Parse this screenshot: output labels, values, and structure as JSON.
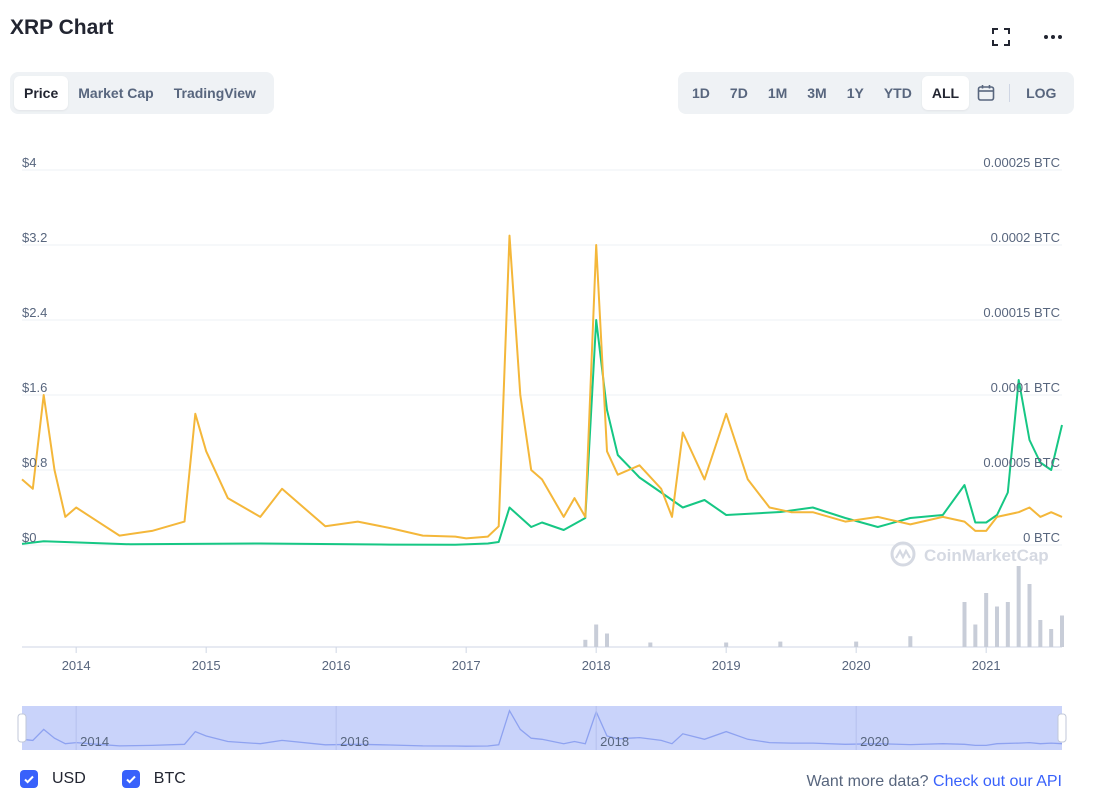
{
  "header": {
    "title": "XRP Chart"
  },
  "tabs_left": [
    {
      "label": "Price",
      "active": true
    },
    {
      "label": "Market Cap",
      "active": false
    },
    {
      "label": "TradingView",
      "active": false
    }
  ],
  "ranges": [
    {
      "label": "1D",
      "active": false
    },
    {
      "label": "7D",
      "active": false
    },
    {
      "label": "1M",
      "active": false
    },
    {
      "label": "3M",
      "active": false
    },
    {
      "label": "1Y",
      "active": false
    },
    {
      "label": "YTD",
      "active": false
    },
    {
      "label": "ALL",
      "active": true
    }
  ],
  "log_label": "LOG",
  "icons": {
    "fullscreen": "fullscreen-icon",
    "more": "more-icon",
    "calendar": "calendar-icon",
    "check": "check-icon"
  },
  "colors": {
    "usd": "#f4b73a",
    "btc": "#16c784",
    "accent": "#3861fb",
    "volume": "#c8cdd8",
    "navigator": "#c9d3fa"
  },
  "watermark": "CoinMarketCap",
  "legend": {
    "usd_label": "USD",
    "btc_label": "BTC"
  },
  "footer": {
    "text": "Want more data?",
    "link": "Check out our API"
  },
  "chart_data": {
    "type": "line",
    "x_range": [
      "2013-08",
      "2021-08"
    ],
    "x_ticks": [
      "2014",
      "2015",
      "2016",
      "2017",
      "2018",
      "2019",
      "2020",
      "2021"
    ],
    "left_axis": {
      "ticks": [
        "$4",
        "$3.2",
        "$2.4",
        "$1.6",
        "$0.8",
        "$0"
      ],
      "range": [
        0,
        4
      ]
    },
    "right_axis": {
      "ticks": [
        "0.00025 BTC",
        "0.0002 BTC",
        "0.00015 BTC",
        "0.0001 BTC",
        "0.00005 BTC",
        "0 BTC"
      ],
      "range": [
        0,
        0.00025
      ]
    },
    "navigator_ticks": [
      "2014",
      "2016",
      "2018",
      "2020"
    ],
    "grid": true,
    "series": [
      {
        "name": "USD",
        "axis": "left",
        "x": [
          "2013-08",
          "2013-09",
          "2013-10",
          "2013-11",
          "2013-12",
          "2014-01",
          "2014-03",
          "2014-05",
          "2014-08",
          "2014-11",
          "2014-12",
          "2015-01",
          "2015-03",
          "2015-06",
          "2015-08",
          "2015-12",
          "2016-03",
          "2016-06",
          "2016-09",
          "2016-12",
          "2017-01",
          "2017-03",
          "2017-04",
          "2017-05",
          "2017-06",
          "2017-07",
          "2017-08",
          "2017-10",
          "2017-11",
          "2017-12",
          "2018-01",
          "2018-02",
          "2018-03",
          "2018-05",
          "2018-07",
          "2018-08",
          "2018-09",
          "2018-11",
          "2019-01",
          "2019-03",
          "2019-05",
          "2019-07",
          "2019-09",
          "2019-12",
          "2020-03",
          "2020-06",
          "2020-09",
          "2020-11",
          "2020-12",
          "2021-01",
          "2021-02",
          "2021-04",
          "2021-05",
          "2021-06",
          "2021-07",
          "2021-08"
        ],
        "values": [
          0.7,
          0.6,
          1.6,
          0.8,
          0.3,
          0.4,
          0.25,
          0.1,
          0.15,
          0.25,
          1.4,
          1.0,
          0.5,
          0.3,
          0.6,
          0.2,
          0.25,
          0.18,
          0.1,
          0.09,
          0.07,
          0.09,
          0.2,
          3.3,
          1.6,
          0.8,
          0.7,
          0.3,
          0.5,
          0.3,
          3.2,
          1.0,
          0.75,
          0.85,
          0.6,
          0.3,
          1.2,
          0.7,
          1.4,
          0.7,
          0.4,
          0.35,
          0.35,
          0.25,
          0.3,
          0.22,
          0.3,
          0.25,
          0.15,
          0.15,
          0.3,
          0.35,
          0.4,
          0.3,
          0.35,
          0.3
        ]
      },
      {
        "name": "BTC",
        "axis": "right",
        "x": [
          "2013-08",
          "2013-10",
          "2014-06",
          "2015-06",
          "2016-06",
          "2016-12",
          "2017-03",
          "2017-04",
          "2017-05",
          "2017-07",
          "2017-08",
          "2017-10",
          "2017-12",
          "2018-01",
          "2018-02",
          "2018-03",
          "2018-05",
          "2018-07",
          "2018-09",
          "2018-11",
          "2019-01",
          "2019-06",
          "2019-09",
          "2019-12",
          "2020-03",
          "2020-06",
          "2020-09",
          "2020-11",
          "2020-12",
          "2021-01",
          "2021-02",
          "2021-03",
          "2021-04",
          "2021-05",
          "2021-06",
          "2021-07",
          "2021-08"
        ],
        "values": [
          7e-07,
          2.5e-06,
          5e-07,
          1e-06,
          3e-07,
          2e-07,
          1e-06,
          2e-06,
          2.5e-05,
          1.2e-05,
          1.5e-05,
          1e-05,
          1.8e-05,
          0.00015,
          9e-05,
          6e-05,
          4.5e-05,
          3.5e-05,
          2.5e-05,
          3e-05,
          2e-05,
          2.2e-05,
          2.5e-05,
          1.8e-05,
          1.2e-05,
          1.8e-05,
          2e-05,
          4e-05,
          1.5e-05,
          1.5e-05,
          2e-05,
          3.5e-05,
          0.00011,
          7e-05,
          5.5e-05,
          5e-05,
          8e-05
        ]
      }
    ],
    "volume": {
      "x": [
        "2017-12",
        "2018-01",
        "2018-02",
        "2018-06",
        "2019-01",
        "2019-06",
        "2020-01",
        "2020-06",
        "2020-11",
        "2020-12",
        "2021-01",
        "2021-02",
        "2021-03",
        "2021-04",
        "2021-05",
        "2021-06",
        "2021-07",
        "2021-08"
      ],
      "values": [
        0.08,
        0.25,
        0.15,
        0.05,
        0.05,
        0.06,
        0.06,
        0.12,
        0.5,
        0.25,
        0.6,
        0.45,
        0.5,
        0.9,
        0.7,
        0.3,
        0.2,
        0.35
      ]
    }
  }
}
